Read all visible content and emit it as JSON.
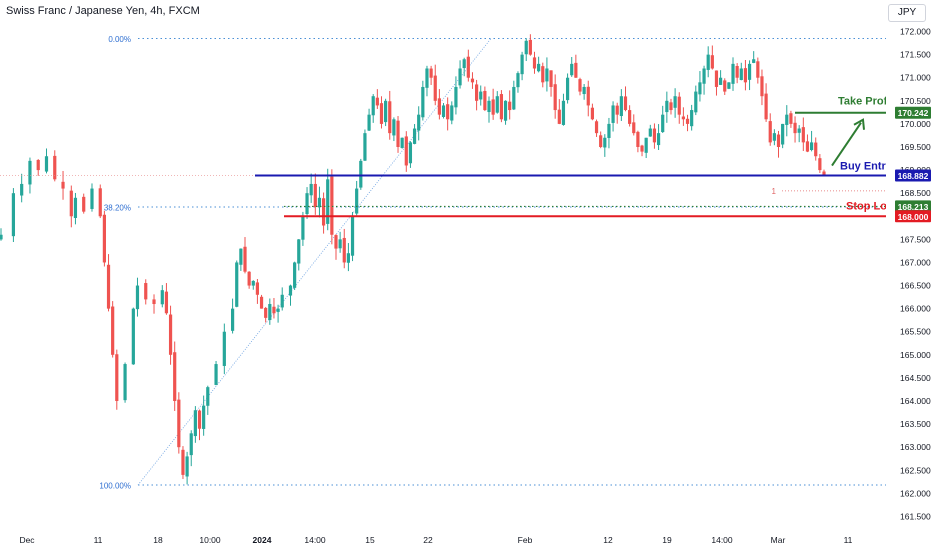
{
  "header": {
    "title": "Swiss Franc / Japanese Yen, 4h, FXCM",
    "currency_button": "JPY"
  },
  "colors": {
    "up": "#26a69a",
    "down": "#ef5350",
    "fib": "#2962ff",
    "entry": "#1a1ab0",
    "take_profit": "#2e7d32",
    "stop_loss": "#e31b23",
    "axis_text": "#131722"
  },
  "chart_data": {
    "type": "candlestick",
    "y_axis": {
      "range": [
        161.25,
        172.25
      ],
      "ticks": [
        161.5,
        162.0,
        162.5,
        163.0,
        163.5,
        164.0,
        164.5,
        165.0,
        165.5,
        166.0,
        166.5,
        167.0,
        167.5,
        168.0,
        168.5,
        169.0,
        169.5,
        170.0,
        170.5,
        171.0,
        171.5,
        172.0
      ],
      "tick_labels": [
        "161.500",
        "162.000",
        "162.500",
        "163.000",
        "163.500",
        "164.000",
        "164.500",
        "165.000",
        "165.500",
        "166.000",
        "166.500",
        "167.000",
        "167.500",
        "168.000",
        "168.500",
        "169.000",
        "169.500",
        "170.000",
        "170.500",
        "171.000",
        "171.500",
        "172.000"
      ]
    },
    "x_axis": {
      "tick_labels": [
        "Dec",
        "11",
        "18",
        "10:00",
        "2024",
        "14:00",
        "15",
        "22",
        "Feb",
        "12",
        "19",
        "14:00",
        "Mar",
        "11"
      ]
    },
    "fib_levels": [
      {
        "label": "0.00%",
        "value": 171.85
      },
      {
        "label": "38.20%",
        "value": 168.2
      },
      {
        "label": "100.00%",
        "value": 162.18
      }
    ],
    "price_levels": {
      "take_profit": {
        "label": "Take Profit",
        "value": 170.242,
        "badge": "170.242"
      },
      "buy_entry": {
        "label": "Buy Entry",
        "value": 168.882,
        "badge": "168.882"
      },
      "stop_loss": {
        "label": "Stop Loss",
        "value": 168.0,
        "badge": "168.000"
      },
      "stop_loss_dotted": {
        "value": 168.213,
        "badge": "168.213"
      },
      "position_marker": {
        "label": "1",
        "value": 168.55
      }
    },
    "price_path": [
      {
        "t": 0,
        "v": 167.6
      },
      {
        "t": 3,
        "v": 168.5
      },
      {
        "t": 5,
        "v": 168.7
      },
      {
        "t": 7,
        "v": 169.2
      },
      {
        "t": 9,
        "v": 169.0
      },
      {
        "t": 11,
        "v": 169.3
      },
      {
        "t": 13,
        "v": 168.8
      },
      {
        "t": 15,
        "v": 168.6
      },
      {
        "t": 17,
        "v": 168.0
      },
      {
        "t": 18,
        "v": 168.4
      },
      {
        "t": 20,
        "v": 168.1
      },
      {
        "t": 22,
        "v": 168.6
      },
      {
        "t": 24,
        "v": 168.0
      },
      {
        "t": 25,
        "v": 167.0
      },
      {
        "t": 26,
        "v": 166.0
      },
      {
        "t": 27,
        "v": 165.0
      },
      {
        "t": 28,
        "v": 164.0
      },
      {
        "t": 30,
        "v": 164.8
      },
      {
        "t": 32,
        "v": 166.0
      },
      {
        "t": 33,
        "v": 166.5
      },
      {
        "t": 35,
        "v": 166.2
      },
      {
        "t": 37,
        "v": 166.1
      },
      {
        "t": 39,
        "v": 166.4
      },
      {
        "t": 40,
        "v": 165.9
      },
      {
        "t": 41,
        "v": 165.0
      },
      {
        "t": 42,
        "v": 164.0
      },
      {
        "t": 43,
        "v": 163.0
      },
      {
        "t": 44,
        "v": 162.4
      },
      {
        "t": 45,
        "v": 162.8
      },
      {
        "t": 46,
        "v": 163.3
      },
      {
        "t": 47,
        "v": 163.8
      },
      {
        "t": 48,
        "v": 163.4
      },
      {
        "t": 49,
        "v": 163.9
      },
      {
        "t": 50,
        "v": 164.3
      },
      {
        "t": 52,
        "v": 164.8
      },
      {
        "t": 54,
        "v": 165.5
      },
      {
        "t": 56,
        "v": 166.0
      },
      {
        "t": 57,
        "v": 167.0
      },
      {
        "t": 58,
        "v": 167.3
      },
      {
        "t": 59,
        "v": 166.8
      },
      {
        "t": 60,
        "v": 166.5
      },
      {
        "t": 61,
        "v": 166.6
      },
      {
        "t": 62,
        "v": 166.3
      },
      {
        "t": 63,
        "v": 166.0
      },
      {
        "t": 64,
        "v": 165.8
      },
      {
        "t": 65,
        "v": 166.1
      },
      {
        "t": 66,
        "v": 165.9
      },
      {
        "t": 67,
        "v": 166.0
      },
      {
        "t": 68,
        "v": 166.3
      },
      {
        "t": 70,
        "v": 166.5
      },
      {
        "t": 71,
        "v": 167.0
      },
      {
        "t": 72,
        "v": 167.5
      },
      {
        "t": 73,
        "v": 168.0
      },
      {
        "t": 74,
        "v": 168.5
      },
      {
        "t": 75,
        "v": 168.7
      },
      {
        "t": 76,
        "v": 168.2
      },
      {
        "t": 77,
        "v": 168.4
      },
      {
        "t": 78,
        "v": 167.8
      },
      {
        "t": 79,
        "v": 168.8
      },
      {
        "t": 80,
        "v": 167.6
      },
      {
        "t": 81,
        "v": 167.3
      },
      {
        "t": 82,
        "v": 167.5
      },
      {
        "t": 83,
        "v": 167.0
      },
      {
        "t": 84,
        "v": 167.2
      },
      {
        "t": 85,
        "v": 168.0
      },
      {
        "t": 86,
        "v": 168.6
      },
      {
        "t": 87,
        "v": 169.2
      },
      {
        "t": 88,
        "v": 169.8
      },
      {
        "t": 89,
        "v": 170.2
      },
      {
        "t": 90,
        "v": 170.6
      },
      {
        "t": 91,
        "v": 170.4
      },
      {
        "t": 92,
        "v": 170.0
      },
      {
        "t": 93,
        "v": 170.5
      },
      {
        "t": 94,
        "v": 169.8
      },
      {
        "t": 95,
        "v": 170.1
      },
      {
        "t": 96,
        "v": 169.5
      },
      {
        "t": 97,
        "v": 169.7
      },
      {
        "t": 98,
        "v": 169.1
      },
      {
        "t": 99,
        "v": 169.6
      },
      {
        "t": 100,
        "v": 169.9
      },
      {
        "t": 101,
        "v": 170.2
      },
      {
        "t": 102,
        "v": 170.8
      },
      {
        "t": 103,
        "v": 171.2
      },
      {
        "t": 104,
        "v": 171.0
      },
      {
        "t": 105,
        "v": 170.5
      },
      {
        "t": 106,
        "v": 170.2
      },
      {
        "t": 107,
        "v": 170.4
      },
      {
        "t": 108,
        "v": 170.1
      },
      {
        "t": 109,
        "v": 170.4
      },
      {
        "t": 110,
        "v": 170.8
      },
      {
        "t": 111,
        "v": 171.2
      },
      {
        "t": 112,
        "v": 171.4
      },
      {
        "t": 113,
        "v": 171.0
      },
      {
        "t": 114,
        "v": 170.9
      },
      {
        "t": 115,
        "v": 170.5
      },
      {
        "t": 116,
        "v": 170.7
      },
      {
        "t": 117,
        "v": 170.3
      },
      {
        "t": 118,
        "v": 170.5
      },
      {
        "t": 119,
        "v": 170.2
      },
      {
        "t": 120,
        "v": 170.6
      },
      {
        "t": 121,
        "v": 170.1
      },
      {
        "t": 122,
        "v": 170.5
      },
      {
        "t": 123,
        "v": 170.3
      },
      {
        "t": 124,
        "v": 170.8
      },
      {
        "t": 125,
        "v": 171.1
      },
      {
        "t": 126,
        "v": 171.5
      },
      {
        "t": 127,
        "v": 171.8
      },
      {
        "t": 128,
        "v": 171.5
      },
      {
        "t": 129,
        "v": 171.2
      },
      {
        "t": 130,
        "v": 171.3
      },
      {
        "t": 131,
        "v": 170.9
      },
      {
        "t": 132,
        "v": 171.2
      },
      {
        "t": 133,
        "v": 170.8
      },
      {
        "t": 134,
        "v": 170.3
      },
      {
        "t": 135,
        "v": 170.0
      },
      {
        "t": 136,
        "v": 170.5
      },
      {
        "t": 137,
        "v": 171.0
      },
      {
        "t": 138,
        "v": 171.3
      },
      {
        "t": 139,
        "v": 171.0
      },
      {
        "t": 140,
        "v": 170.7
      },
      {
        "t": 141,
        "v": 170.8
      },
      {
        "t": 142,
        "v": 170.4
      },
      {
        "t": 143,
        "v": 170.1
      },
      {
        "t": 144,
        "v": 169.8
      },
      {
        "t": 145,
        "v": 169.5
      },
      {
        "t": 146,
        "v": 169.7
      },
      {
        "t": 147,
        "v": 170.0
      },
      {
        "t": 148,
        "v": 170.4
      },
      {
        "t": 149,
        "v": 170.2
      },
      {
        "t": 150,
        "v": 170.6
      },
      {
        "t": 151,
        "v": 170.3
      },
      {
        "t": 152,
        "v": 170.0
      },
      {
        "t": 153,
        "v": 169.8
      },
      {
        "t": 154,
        "v": 169.5
      },
      {
        "t": 155,
        "v": 169.4
      },
      {
        "t": 156,
        "v": 169.7
      },
      {
        "t": 157,
        "v": 169.9
      },
      {
        "t": 158,
        "v": 169.6
      },
      {
        "t": 159,
        "v": 169.8
      },
      {
        "t": 160,
        "v": 170.2
      },
      {
        "t": 161,
        "v": 170.5
      },
      {
        "t": 162,
        "v": 170.3
      },
      {
        "t": 163,
        "v": 170.6
      },
      {
        "t": 164,
        "v": 170.2
      },
      {
        "t": 165,
        "v": 170.1
      },
      {
        "t": 166,
        "v": 170.0
      },
      {
        "t": 167,
        "v": 170.3
      },
      {
        "t": 168,
        "v": 170.7
      },
      {
        "t": 169,
        "v": 170.9
      },
      {
        "t": 170,
        "v": 171.2
      },
      {
        "t": 171,
        "v": 171.5
      },
      {
        "t": 172,
        "v": 171.2
      },
      {
        "t": 173,
        "v": 170.8
      },
      {
        "t": 174,
        "v": 171.0
      },
      {
        "t": 175,
        "v": 170.7
      },
      {
        "t": 176,
        "v": 170.9
      },
      {
        "t": 177,
        "v": 171.3
      },
      {
        "t": 178,
        "v": 171.0
      },
      {
        "t": 179,
        "v": 171.2
      },
      {
        "t": 180,
        "v": 170.9
      },
      {
        "t": 181,
        "v": 171.3
      },
      {
        "t": 182,
        "v": 171.4
      },
      {
        "t": 183,
        "v": 171.0
      },
      {
        "t": 184,
        "v": 170.6
      },
      {
        "t": 185,
        "v": 170.1
      },
      {
        "t": 186,
        "v": 169.6
      },
      {
        "t": 187,
        "v": 169.8
      },
      {
        "t": 188,
        "v": 169.5
      },
      {
        "t": 189,
        "v": 170.0
      },
      {
        "t": 190,
        "v": 170.2
      },
      {
        "t": 191,
        "v": 170.0
      },
      {
        "t": 192,
        "v": 169.8
      },
      {
        "t": 193,
        "v": 169.9
      },
      {
        "t": 194,
        "v": 169.6
      },
      {
        "t": 195,
        "v": 169.4
      },
      {
        "t": 196,
        "v": 169.6
      },
      {
        "t": 197,
        "v": 169.3
      },
      {
        "t": 198,
        "v": 169.0
      },
      {
        "t": 199,
        "v": 168.9
      }
    ]
  }
}
